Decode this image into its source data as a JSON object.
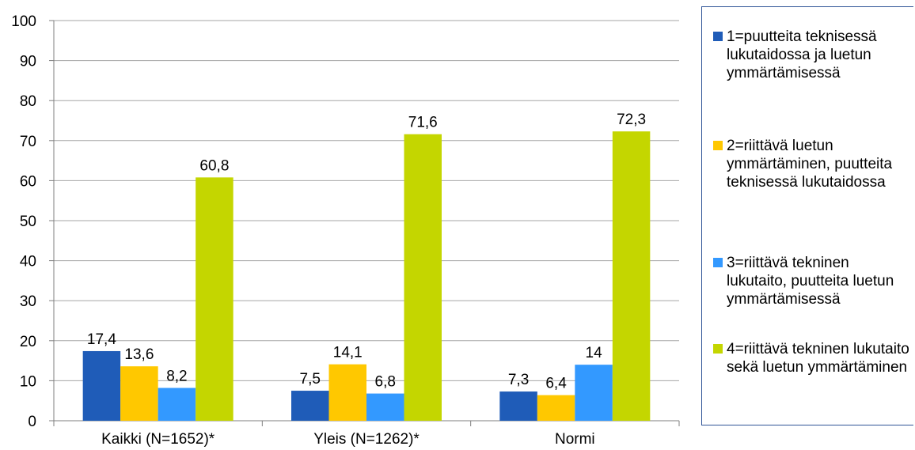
{
  "chart_data": {
    "type": "bar",
    "categories": [
      "Kaikki (N=1652)*",
      "Yleis (N=1262)*",
      "Normi"
    ],
    "series": [
      {
        "name": "1=puutteita teknisessä lukutaidossa ja luetun ymmärtämisessä",
        "values": [
          17.4,
          7.5,
          7.3
        ],
        "labels": [
          "17,4",
          "7,5",
          "7,3"
        ],
        "color": "#1F5CB8"
      },
      {
        "name": "2=riittävä luetun ymmärtäminen, puutteita teknisessä lukutaidossa",
        "values": [
          13.6,
          14.1,
          6.4
        ],
        "labels": [
          "13,6",
          "14,1",
          "6,4"
        ],
        "color": "#FFC800"
      },
      {
        "name": "3=riittävä tekninen lukutaito, puutteita luetun ymmärtämisessä",
        "values": [
          8.2,
          6.8,
          14
        ],
        "labels": [
          "8,2",
          "6,8",
          "14"
        ],
        "color": "#3399FF"
      },
      {
        "name": "4=riittävä tekninen lukutaito sekä luetun ymmärtäminen",
        "values": [
          60.8,
          71.6,
          72.3
        ],
        "labels": [
          "60,8",
          "71,6",
          "72,3"
        ],
        "color": "#C4D600"
      }
    ],
    "ylim": [
      0,
      100
    ],
    "yticks": [
      "0",
      "10",
      "20",
      "30",
      "40",
      "50",
      "60",
      "70",
      "80",
      "90",
      "100"
    ],
    "grid": true,
    "legend_position": "right",
    "title": "",
    "xlabel": "",
    "ylabel": ""
  },
  "colors": {
    "grid": "#A6A6A6",
    "axis": "#7F7F7F",
    "legend_border": "#2F5496"
  }
}
